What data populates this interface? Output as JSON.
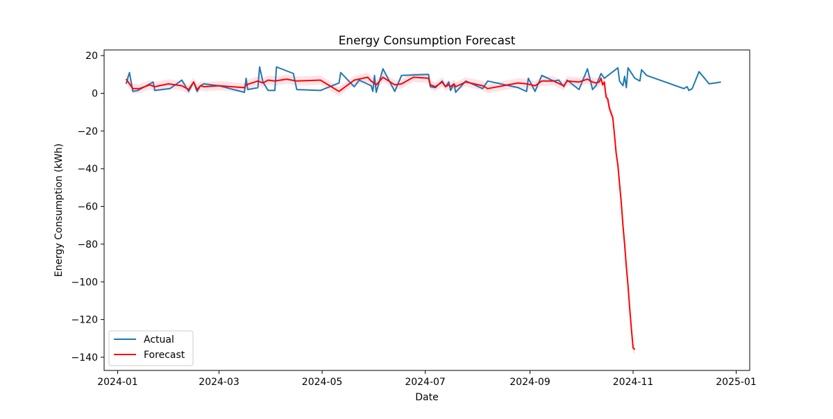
{
  "chart_data": {
    "type": "line",
    "title": "Energy Consumption Forecast",
    "xlabel": "Date",
    "ylabel": "Energy Consumption (kWh)",
    "x_axis": {
      "type": "date",
      "range": [
        "2023-12-24",
        "2025-01-09"
      ],
      "ticks": [
        "2024-01",
        "2024-03",
        "2024-05",
        "2024-07",
        "2024-09",
        "2024-11",
        "2025-01"
      ]
    },
    "y_axis": {
      "range": [
        -147,
        23
      ],
      "ticks": [
        20,
        0,
        -20,
        -40,
        -60,
        -80,
        -100,
        -120,
        -140
      ]
    },
    "grid": false,
    "legend": {
      "placement": "lower-left",
      "entries": [
        "Actual",
        "Forecast"
      ]
    },
    "colors": {
      "actual": "#1f77b4",
      "forecast": "#ff0000",
      "confidence_band": "#ffc0cb"
    },
    "series": [
      {
        "name": "Actual",
        "x": [
          "2024-01-06",
          "2024-01-08",
          "2024-01-10",
          "2024-01-13",
          "2024-01-22",
          "2024-01-23",
          "2024-02-01",
          "2024-02-08",
          "2024-02-12",
          "2024-02-15",
          "2024-02-17",
          "2024-02-19",
          "2024-02-21",
          "2024-03-01",
          "2024-03-16",
          "2024-03-17",
          "2024-03-18",
          "2024-03-24",
          "2024-03-25",
          "2024-03-27",
          "2024-03-30",
          "2024-04-03",
          "2024-04-04",
          "2024-04-14",
          "2024-04-16",
          "2024-04-30",
          "2024-05-11",
          "2024-05-12",
          "2024-05-20",
          "2024-05-23",
          "2024-05-30",
          "2024-05-31",
          "2024-06-01",
          "2024-06-02",
          "2024-06-06",
          "2024-06-13",
          "2024-06-17",
          "2024-07-03",
          "2024-07-04",
          "2024-07-07",
          "2024-07-11",
          "2024-07-13",
          "2024-07-15",
          "2024-07-16",
          "2024-07-18",
          "2024-07-19",
          "2024-07-25",
          "2024-08-04",
          "2024-08-07",
          "2024-08-25",
          "2024-08-30",
          "2024-08-31",
          "2024-09-04",
          "2024-09-08",
          "2024-09-15",
          "2024-09-18",
          "2024-09-21",
          "2024-09-23",
          "2024-09-30",
          "2024-10-05",
          "2024-10-08",
          "2024-10-10",
          "2024-10-13",
          "2024-10-15",
          "2024-10-23",
          "2024-10-24",
          "2024-10-26",
          "2024-10-27",
          "2024-10-28",
          "2024-10-29",
          "2024-11-02",
          "2024-11-05",
          "2024-11-06",
          "2024-11-09",
          "2024-12-01",
          "2024-12-03",
          "2024-12-04",
          "2024-12-06",
          "2024-12-10",
          "2024-12-16",
          "2024-12-23"
        ],
        "y": [
          5,
          11,
          1,
          1.5,
          6,
          1.5,
          2.5,
          7,
          1,
          6,
          1,
          4,
          5,
          4,
          0.5,
          8,
          2,
          3,
          14,
          6,
          1.5,
          1.5,
          14,
          10.5,
          2,
          1.5,
          5.5,
          11,
          3.5,
          7,
          4,
          1,
          9.5,
          0.5,
          13,
          1,
          9.5,
          10,
          3.5,
          3,
          6.5,
          3.5,
          6,
          1.5,
          5,
          0.5,
          6.5,
          2.5,
          6.5,
          3,
          1,
          8,
          1,
          9.5,
          6.5,
          7,
          3.5,
          7,
          2,
          13,
          2,
          4,
          10.5,
          8,
          13.5,
          6.5,
          4,
          9,
          3,
          13.5,
          8,
          6.5,
          12.5,
          9.5,
          2.5,
          3.5,
          1.5,
          2.5,
          11.5,
          5,
          6
        ]
      },
      {
        "name": "Forecast",
        "x": [
          "2024-01-06",
          "2024-01-10",
          "2024-01-14",
          "2024-01-20",
          "2024-01-23",
          "2024-01-31",
          "2024-02-08",
          "2024-02-12",
          "2024-02-15",
          "2024-02-17",
          "2024-02-19",
          "2024-02-21",
          "2024-03-01",
          "2024-03-16",
          "2024-03-17",
          "2024-03-24",
          "2024-03-27",
          "2024-03-30",
          "2024-04-03",
          "2024-04-10",
          "2024-04-16",
          "2024-04-30",
          "2024-05-11",
          "2024-05-20",
          "2024-05-28",
          "2024-05-30",
          "2024-06-02",
          "2024-06-06",
          "2024-06-13",
          "2024-06-17",
          "2024-06-24",
          "2024-07-03",
          "2024-07-04",
          "2024-07-07",
          "2024-07-11",
          "2024-07-13",
          "2024-07-15",
          "2024-07-16",
          "2024-07-18",
          "2024-07-19",
          "2024-07-25",
          "2024-08-04",
          "2024-08-07",
          "2024-08-25",
          "2024-08-30",
          "2024-09-04",
          "2024-09-08",
          "2024-09-15",
          "2024-09-21",
          "2024-09-23",
          "2024-09-30",
          "2024-10-05",
          "2024-10-08",
          "2024-10-10",
          "2024-10-12",
          "2024-10-13",
          "2024-10-14",
          "2024-10-15",
          "2024-10-16",
          "2024-10-17",
          "2024-10-18",
          "2024-10-20",
          "2024-10-21",
          "2024-10-22",
          "2024-10-23",
          "2024-10-24",
          "2024-10-25",
          "2024-10-26",
          "2024-10-27",
          "2024-10-28",
          "2024-10-29",
          "2024-10-30",
          "2024-10-31",
          "2024-11-01",
          "2024-11-02"
        ],
        "y": [
          7.5,
          2.5,
          2.5,
          4.5,
          3.5,
          5,
          4,
          2,
          6,
          2,
          4,
          3.5,
          4,
          3,
          4.5,
          6.5,
          5.5,
          7,
          6.5,
          7.5,
          6.5,
          7,
          1,
          7,
          8.5,
          6.5,
          4.5,
          8.5,
          4.5,
          5,
          8.5,
          8,
          4.5,
          3.5,
          6,
          3.5,
          4.5,
          3.5,
          5,
          3.5,
          6,
          4,
          2.5,
          5.5,
          5,
          4,
          6.5,
          6.5,
          4,
          6.5,
          6,
          7.5,
          6,
          5.5,
          6,
          8,
          4.5,
          6,
          -2,
          -3,
          -8,
          -13,
          -22,
          -32,
          -38,
          -48,
          -58,
          -70,
          -80,
          -92,
          -102,
          -114,
          -125,
          -135,
          -136
        ]
      }
    ]
  }
}
